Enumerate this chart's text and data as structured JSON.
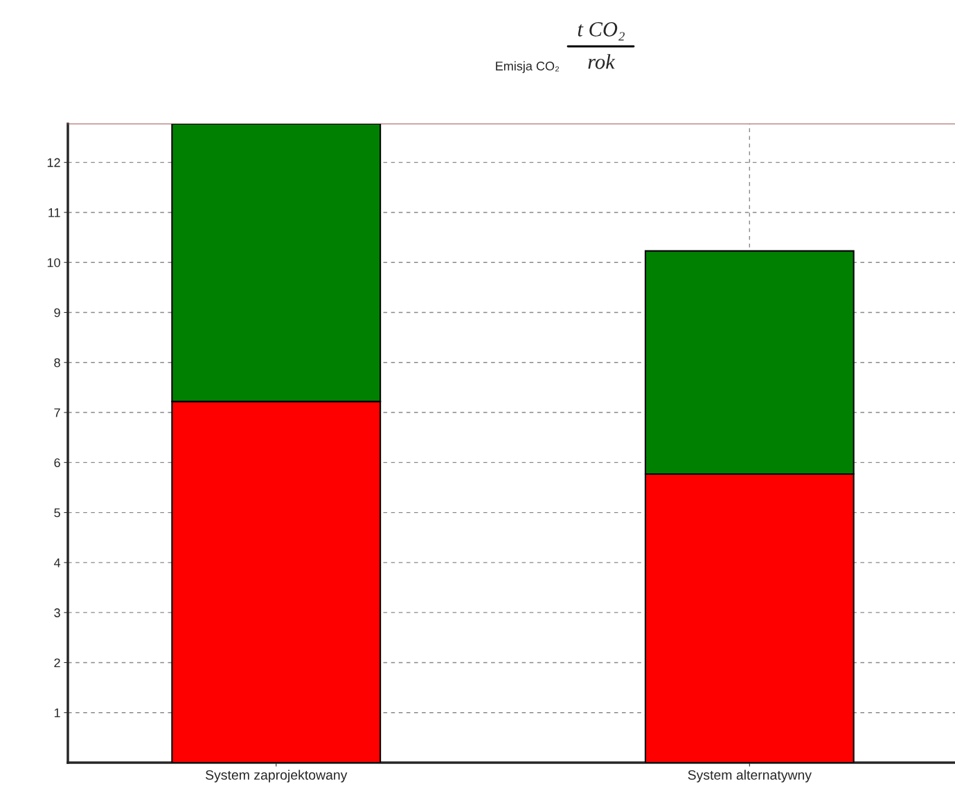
{
  "chart_data": {
    "type": "bar",
    "title": "Emisja CO₂",
    "annotations": [
      "t CO₂",
      "rok"
    ],
    "categories": [
      "System zaprojektowany",
      "System alternatywny"
    ],
    "stacked": true,
    "series": [
      {
        "color": "#ff0000",
        "values": [
          7.22,
          5.77
        ]
      },
      {
        "color": "#008000",
        "values": [
          5.55,
          4.46
        ]
      }
    ],
    "ylim": [
      0,
      12.77
    ],
    "yticks": [
      1,
      2,
      3,
      4,
      5,
      6,
      7,
      8,
      9,
      10,
      11,
      12
    ],
    "grid": true
  }
}
